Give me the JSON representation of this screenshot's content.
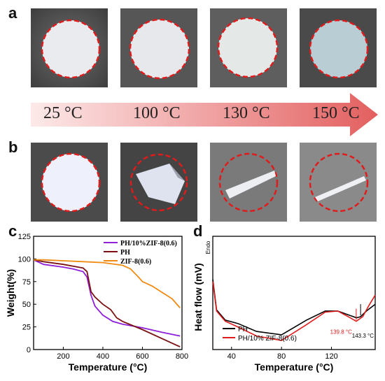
{
  "panels": {
    "a": "a",
    "b": "b",
    "c": "c",
    "d": "d"
  },
  "temperatures": [
    "25 °C",
    "100 °C",
    "130 °C",
    "150 °C"
  ],
  "colors": {
    "circle_dash": "#e01b1b",
    "arrow_light": "#fde9e9",
    "arrow_dark": "#e35f5f",
    "orange": "#f08a10",
    "purple": "#8f1fd8",
    "darkred": "#7a1212",
    "black": "#000000",
    "red": "#e01b1b"
  },
  "chart_data": [
    {
      "type": "line",
      "panel": "c",
      "xlabel": "Temperature (°C)",
      "ylabel": "Weight(%)",
      "xlim": [
        50,
        800
      ],
      "ylim": [
        0,
        125
      ],
      "xticks": [
        200,
        400,
        600,
        800
      ],
      "yticks": [
        0,
        25,
        50,
        75,
        100,
        125
      ],
      "legend_position": "top-right",
      "series": [
        {
          "name": "PH/10%ZIF-8(0.6)",
          "color": "#8f1fd8",
          "x": [
            50,
            100,
            200,
            250,
            300,
            320,
            340,
            360,
            400,
            450,
            500,
            600,
            700,
            790
          ],
          "y": [
            99,
            94,
            91,
            89,
            86,
            80,
            60,
            48,
            38,
            31,
            28,
            24,
            19,
            15
          ]
        },
        {
          "name": "PH",
          "color": "#7a1212",
          "x": [
            50,
            100,
            200,
            300,
            320,
            340,
            360,
            400,
            440,
            470,
            500,
            600,
            700,
            790
          ],
          "y": [
            99,
            97,
            94,
            90,
            86,
            64,
            58,
            50,
            44,
            35,
            31,
            22,
            12,
            3
          ]
        },
        {
          "name": "ZIF-8(0.6)",
          "color": "#f08a10",
          "x": [
            50,
            100,
            200,
            300,
            400,
            500,
            540,
            580,
            600,
            650,
            700,
            750,
            790
          ],
          "y": [
            99,
            99,
            98,
            97,
            96,
            93,
            89,
            80,
            75,
            70,
            63,
            56,
            46
          ]
        }
      ]
    },
    {
      "type": "line",
      "panel": "d",
      "xlabel": "Temperature (°C)",
      "ylabel": "Heat flow (mV)",
      "y_annotation": "Endo",
      "xlim": [
        25,
        155
      ],
      "xticks": [
        40,
        80,
        120
      ],
      "legend_position": "bottom-left",
      "annotations": [
        "139.8 °C",
        "143.3 °C"
      ],
      "series": [
        {
          "name": "PH",
          "color": "#000000",
          "x": [
            25,
            28,
            35,
            45,
            60,
            80,
            100,
            115,
            125,
            135,
            140,
            143.3,
            148,
            155
          ],
          "y": [
            0.62,
            0.35,
            0.26,
            0.23,
            0.16,
            0.13,
            0.26,
            0.34,
            0.34,
            0.3,
            0.28,
            0.29,
            0.34,
            0.4
          ]
        },
        {
          "name": "PH/10% ZIF-8(0.6)",
          "color": "#e01b1b",
          "x": [
            25,
            28,
            35,
            45,
            60,
            80,
            100,
            115,
            125,
            135,
            139.8,
            145,
            150,
            155
          ],
          "y": [
            0.6,
            0.34,
            0.25,
            0.2,
            0.12,
            0.08,
            0.22,
            0.33,
            0.34,
            0.28,
            0.25,
            0.29,
            0.39,
            0.48
          ]
        }
      ]
    }
  ]
}
